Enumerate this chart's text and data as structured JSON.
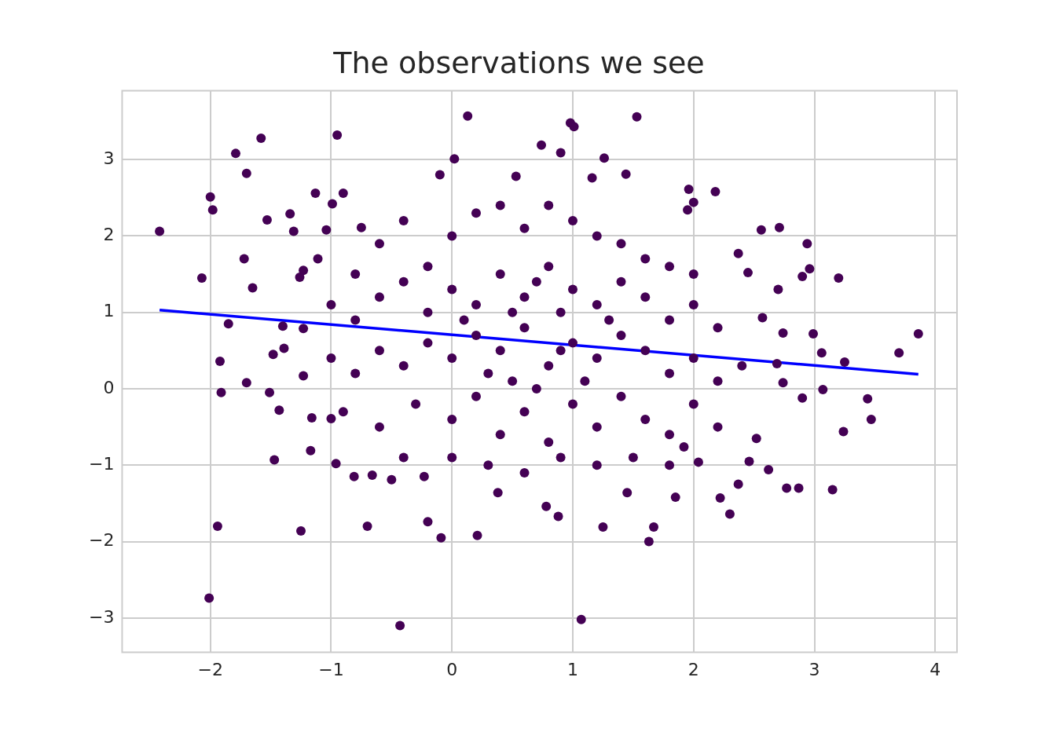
{
  "chart_data": {
    "type": "scatter",
    "title": "The observations we see",
    "xlim": [
      -2.73,
      4.18
    ],
    "ylim": [
      -3.45,
      3.9
    ],
    "xticks": [
      -2,
      -1,
      0,
      1,
      2,
      3,
      4
    ],
    "yticks": [
      -3,
      -2,
      -1,
      0,
      1,
      2,
      3
    ],
    "grid": true,
    "series": [
      {
        "marker": "circle",
        "color": "#440154",
        "x": [
          -2.42,
          -2.07,
          -2.0,
          -1.98,
          -1.79,
          -1.58,
          -1.7,
          -1.53,
          -1.72,
          -1.65,
          -1.85,
          -1.92,
          -1.91,
          -1.7,
          -1.94,
          -2.01,
          -1.51,
          -1.47,
          -1.25,
          -1.17,
          -0.95,
          -0.96,
          -0.7,
          -0.43,
          -0.2,
          -0.09,
          0.13,
          0.02,
          0.21,
          1.07,
          1.53,
          0.98,
          1.01,
          1.63,
          2.18,
          2.71,
          2.94,
          3.2,
          3.86,
          3.7,
          3.44,
          3.47,
          3.24,
          3.15,
          2.77,
          2.87,
          2.3,
          2.22,
          2.37,
          3.06,
          3.07,
          3.25,
          2.9,
          2.99,
          1.25,
          0.88,
          0.78,
          0.38,
          1.85,
          1.67,
          1.45,
          -0.66,
          -0.5,
          -0.23,
          -0.81,
          0.74,
          1.26,
          1.16,
          1.44,
          0.9,
          0.53,
          -0.1,
          -0.9,
          -1.13,
          -1.34,
          -0.99,
          1.96,
          2.0,
          1.95,
          2.56,
          2.37,
          2.45,
          2.7,
          2.9,
          2.96,
          2.57,
          2.74,
          2.69,
          2.74,
          2.52,
          2.46,
          2.62,
          2.04,
          1.92,
          -1.43,
          -1.16,
          -1.0,
          -1.23,
          -1.39,
          -1.48,
          -1.4,
          -1.26,
          -1.23,
          -1.11,
          -1.31,
          -1.04,
          -0.75,
          -1.23,
          -0.8,
          -0.6,
          -0.4,
          -0.2,
          0,
          0.2,
          0.4,
          0.6,
          0.8,
          1.0,
          1.2,
          1.4,
          1.6,
          1.8,
          2.0,
          -1.0,
          -0.8,
          -0.6,
          -0.4,
          -0.2,
          0,
          0.2,
          0.4,
          0.6,
          0.8,
          1.0,
          1.2,
          1.4,
          1.6,
          1.8,
          2.0,
          2.2,
          -1.0,
          -0.8,
          -0.6,
          -0.4,
          -0.2,
          0,
          0.2,
          0.4,
          0.6,
          0.8,
          1.0,
          1.2,
          1.4,
          1.6,
          1.8,
          2.0,
          2.2,
          2.4,
          -0.9,
          -0.6,
          -0.3,
          0,
          0.2,
          0.4,
          0.6,
          0.8,
          1.0,
          1.2,
          1.4,
          1.6,
          1.8,
          2.0,
          2.2,
          -0.4,
          0,
          0.3,
          0.6,
          0.9,
          1.2,
          1.5,
          1.8,
          0.1,
          0.3,
          0.5,
          0.7,
          0.9,
          1.1,
          1.3,
          0.5,
          0.7,
          0.9
        ],
        "values": [
          2.06,
          1.45,
          2.51,
          2.34,
          3.08,
          3.28,
          2.82,
          2.21,
          1.7,
          1.32,
          0.85,
          0.36,
          -0.05,
          0.08,
          -1.8,
          -2.74,
          -0.05,
          -0.93,
          -1.86,
          -0.81,
          3.32,
          -0.98,
          -1.8,
          -3.1,
          -1.74,
          -1.95,
          3.57,
          3.01,
          -1.92,
          -3.02,
          3.56,
          3.48,
          3.43,
          -2.0,
          2.58,
          2.11,
          1.9,
          1.45,
          0.72,
          0.47,
          -0.13,
          -0.4,
          -0.56,
          -1.32,
          -1.3,
          -1.3,
          -1.64,
          -1.43,
          -1.25,
          0.47,
          -0.01,
          0.35,
          -0.12,
          0.72,
          -1.81,
          -1.67,
          -1.54,
          -1.36,
          -1.42,
          -1.81,
          -1.36,
          -1.13,
          -1.19,
          -1.15,
          -1.15,
          3.19,
          3.02,
          2.76,
          2.81,
          3.09,
          2.78,
          2.8,
          2.56,
          2.56,
          2.29,
          2.42,
          2.61,
          2.44,
          2.34,
          2.08,
          1.77,
          1.52,
          1.3,
          1.47,
          1.57,
          0.93,
          0.73,
          0.33,
          0.08,
          -0.65,
          -0.95,
          -1.06,
          -0.96,
          -0.76,
          -0.28,
          -0.38,
          -0.39,
          0.17,
          0.53,
          0.45,
          0.82,
          1.46,
          1.55,
          1.7,
          2.06,
          2.08,
          2.11,
          0.79,
          1.5,
          1.9,
          2.2,
          1.6,
          2.0,
          2.3,
          2.4,
          2.1,
          2.4,
          2.2,
          2.0,
          1.9,
          1.7,
          1.6,
          1.5,
          1.1,
          0.9,
          1.2,
          1.4,
          1.0,
          1.3,
          1.1,
          1.5,
          1.2,
          1.6,
          1.3,
          1.1,
          1.4,
          1.2,
          0.9,
          1.1,
          0.8,
          0.4,
          0.2,
          0.5,
          0.3,
          0.6,
          0.4,
          0.7,
          0.5,
          0.8,
          0.3,
          0.6,
          0.4,
          0.7,
          0.5,
          0.2,
          0.4,
          0.1,
          0.3,
          -0.3,
          -0.5,
          -0.2,
          -0.4,
          -0.1,
          -0.6,
          -0.3,
          -0.7,
          -0.2,
          -0.5,
          -0.1,
          -0.4,
          -0.6,
          -0.2,
          -0.5,
          -0.9,
          -0.9,
          -1.0,
          -1.1,
          -0.9,
          -1.0,
          -0.9,
          -1.0,
          0.9,
          0.2,
          1.0,
          0.0,
          1.0,
          0.1,
          0.9,
          0.1,
          1.4,
          0.5
        ]
      },
      {
        "type": "line",
        "marker": "none",
        "color": "#0000ff",
        "x": [
          -2.42,
          3.86
        ],
        "values": [
          1.03,
          0.19
        ]
      }
    ]
  }
}
